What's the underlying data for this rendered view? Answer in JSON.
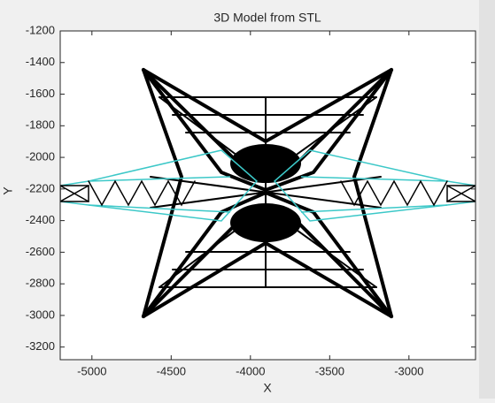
{
  "chart_data": {
    "type": "wireframe",
    "title": "3D Model from STL",
    "x_label": "X",
    "y_label": "Y",
    "xlim": [
      -5200,
      -2580
    ],
    "ylim": [
      -3280,
      -1200
    ],
    "xticks": [
      -5000,
      -4500,
      -4000,
      -3500,
      -3000
    ],
    "yticks": [
      -1200,
      -1400,
      -1600,
      -1800,
      -2000,
      -2200,
      -2400,
      -2600,
      -2800,
      -3000,
      -3200
    ]
  }
}
